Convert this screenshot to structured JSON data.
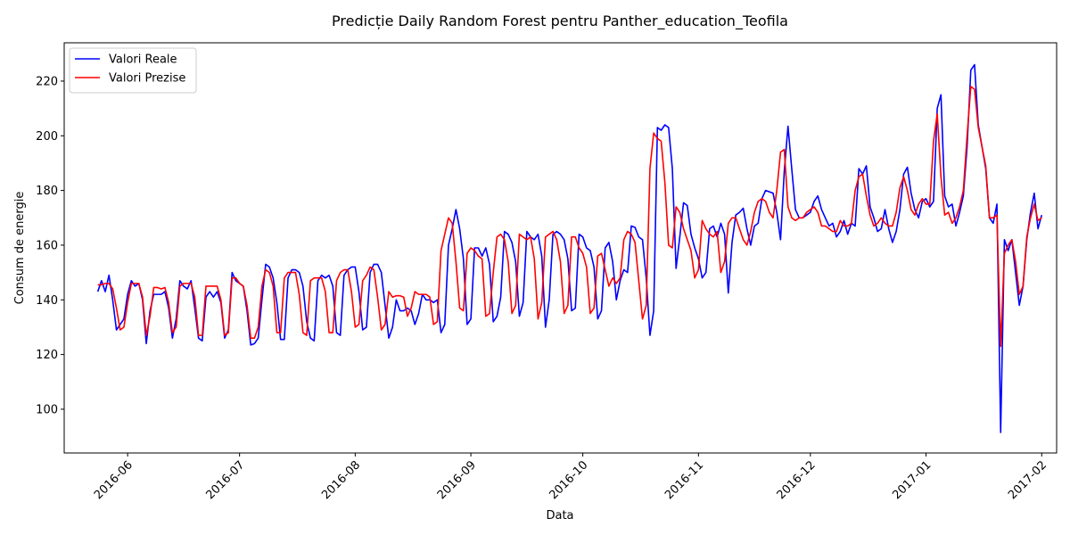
{
  "chart_data": {
    "type": "line",
    "title": "Predicție Daily Random Forest pentru Panther_education_Teofila",
    "xlabel": "Data",
    "ylabel": "Consum de energie",
    "x_start": "2016-05-24",
    "ylim": [
      84,
      234
    ],
    "xlim": [
      "2016-05-15",
      "2017-02-05"
    ],
    "yticks": [
      100,
      120,
      140,
      160,
      180,
      200,
      220
    ],
    "xticks": [
      {
        "date": "2016-06-01",
        "label": "2016-06"
      },
      {
        "date": "2016-07-01",
        "label": "2016-07"
      },
      {
        "date": "2016-08-01",
        "label": "2016-08"
      },
      {
        "date": "2016-09-01",
        "label": "2016-09"
      },
      {
        "date": "2016-10-01",
        "label": "2016-10"
      },
      {
        "date": "2016-11-01",
        "label": "2016-11"
      },
      {
        "date": "2016-12-01",
        "label": "2016-12"
      },
      {
        "date": "2017-01-01",
        "label": "2017-01"
      },
      {
        "date": "2017-02-01",
        "label": "2017-02"
      }
    ],
    "legend": {
      "position": "top-left"
    },
    "grid": false,
    "series": [
      {
        "name": "Valori Reale",
        "color": "#0000ff",
        "values": [
          143,
          147,
          143,
          149,
          140,
          129,
          131,
          133,
          142,
          147,
          145,
          146,
          140,
          124,
          136,
          142,
          142,
          142,
          143,
          137,
          126,
          133,
          147,
          145,
          144,
          147,
          137,
          126,
          125,
          141,
          143,
          141,
          143,
          139,
          126,
          129,
          150,
          147,
          146,
          145,
          136,
          123.5,
          124,
          126,
          140,
          153,
          152,
          148,
          139,
          125.5,
          125.5,
          148,
          151,
          151,
          150,
          145,
          132,
          126,
          125,
          147,
          149,
          148,
          149,
          145,
          128,
          127,
          149,
          151,
          152,
          152,
          143,
          129,
          130,
          150,
          153,
          153,
          150,
          138,
          126,
          130,
          140,
          136,
          136,
          137,
          136,
          131,
          135,
          142,
          140,
          140,
          139,
          140,
          128,
          131,
          160,
          166,
          173,
          166,
          155,
          131,
          133,
          159,
          159,
          156,
          159,
          153,
          132,
          134,
          141,
          165,
          164,
          161,
          154,
          134,
          139,
          165,
          163,
          162,
          164,
          156,
          130,
          140,
          164,
          165,
          164,
          162,
          155,
          136,
          137,
          164,
          163,
          159,
          158,
          152,
          133,
          136,
          159,
          161,
          154,
          140,
          147,
          151,
          150,
          167,
          166.5,
          163,
          162,
          148,
          127,
          136,
          203,
          202,
          204,
          203,
          188,
          151.5,
          163,
          175.5,
          174.5,
          164,
          159,
          155,
          148,
          150,
          166,
          167,
          163,
          168,
          164,
          142.5,
          161,
          171,
          172,
          173.5,
          166,
          160,
          167,
          168,
          177,
          180,
          179.5,
          179,
          172,
          162,
          187,
          203.5,
          188,
          173,
          170,
          170,
          171,
          172,
          176,
          178,
          173,
          170,
          167,
          168,
          163,
          165,
          169,
          164,
          168,
          167,
          188,
          186,
          189,
          174,
          170,
          165,
          166,
          173,
          166,
          161,
          165,
          173,
          186,
          188.5,
          179,
          173,
          170,
          176,
          177,
          174,
          176,
          210,
          215,
          178,
          174,
          175,
          167,
          172,
          178,
          196,
          224,
          226,
          204,
          196,
          188,
          170,
          168,
          175,
          91.5,
          162,
          158,
          162,
          150,
          138,
          145,
          162,
          172,
          179,
          166,
          171
        ]
      },
      {
        "name": "Valori Prezise",
        "color": "#ff0000",
        "values": [
          145.5,
          145.5,
          146,
          146,
          144,
          137,
          129,
          130,
          139,
          146,
          146,
          146,
          141,
          127,
          134,
          144.5,
          144.5,
          144,
          144.5,
          139,
          128,
          130,
          145,
          146,
          146,
          146,
          141,
          127,
          127,
          145,
          145,
          145,
          145,
          140,
          127,
          128,
          148,
          148,
          146,
          145,
          138,
          126,
          126,
          130,
          145,
          151,
          150,
          145,
          128,
          128,
          148,
          150,
          150,
          150,
          142,
          128,
          127,
          147,
          148,
          148,
          148,
          143,
          128,
          128,
          147,
          150,
          151,
          151,
          143,
          130,
          131,
          147,
          149,
          152,
          151,
          141,
          129,
          131,
          143,
          141,
          141.5,
          141.5,
          141,
          134,
          137,
          143,
          142,
          142,
          142,
          141,
          131,
          132,
          158,
          164,
          170,
          168,
          154,
          137,
          136,
          157,
          159,
          158,
          156,
          155,
          134,
          135,
          150,
          163,
          164,
          162,
          154,
          135,
          138,
          164,
          163,
          162,
          163,
          155,
          133,
          139,
          163,
          164,
          165,
          162,
          154,
          135,
          138,
          163,
          163,
          159,
          157,
          152,
          135,
          137,
          156,
          157,
          151,
          145,
          148,
          146,
          148,
          162,
          165,
          164,
          161,
          147,
          133,
          138,
          188,
          201,
          199,
          198,
          183,
          160,
          159,
          174,
          172,
          166,
          162,
          158,
          148,
          151,
          169,
          166,
          164,
          163,
          165,
          150,
          154,
          168,
          170,
          170,
          166,
          162,
          160,
          165,
          172,
          176,
          177,
          176,
          172,
          170,
          180,
          194,
          195,
          174,
          170,
          169,
          170,
          170,
          172,
          173,
          174,
          172,
          167,
          167,
          166,
          165,
          165,
          169,
          167,
          167,
          168,
          180,
          185,
          186,
          178,
          171,
          167,
          168,
          170,
          168,
          167,
          167,
          172,
          181,
          185,
          180,
          173,
          171,
          175,
          177,
          175,
          175,
          198,
          208,
          185,
          171,
          172,
          168,
          170,
          174,
          180,
          200,
          218,
          217,
          203,
          196,
          189,
          170,
          170,
          171,
          123,
          157,
          160,
          162,
          154,
          142,
          145,
          163,
          170,
          175,
          169,
          170
        ]
      }
    ]
  }
}
